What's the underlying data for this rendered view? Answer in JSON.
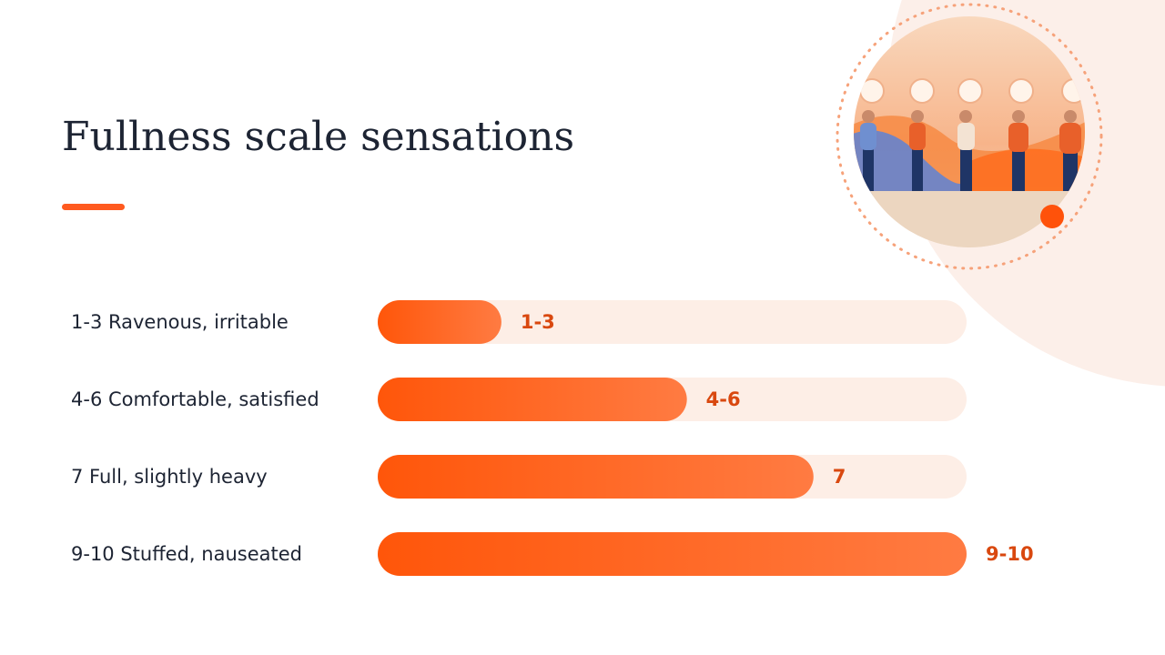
{
  "chart_data": {
    "type": "bar",
    "orientation": "horizontal",
    "title": "Fullness scale sensations",
    "categories": [
      "1-3 Ravenous, irritable",
      "4-6 Comfortable, satisfied",
      "7 Full, slightly heavy",
      "9-10 Stuffed, nauseated"
    ],
    "values": [
      2.1,
      5.25,
      7.4,
      10
    ],
    "value_labels": [
      "1-3",
      "4-6",
      "7",
      "9-10"
    ],
    "color": "#ff5a0a",
    "xlim": [
      0,
      10
    ]
  }
}
